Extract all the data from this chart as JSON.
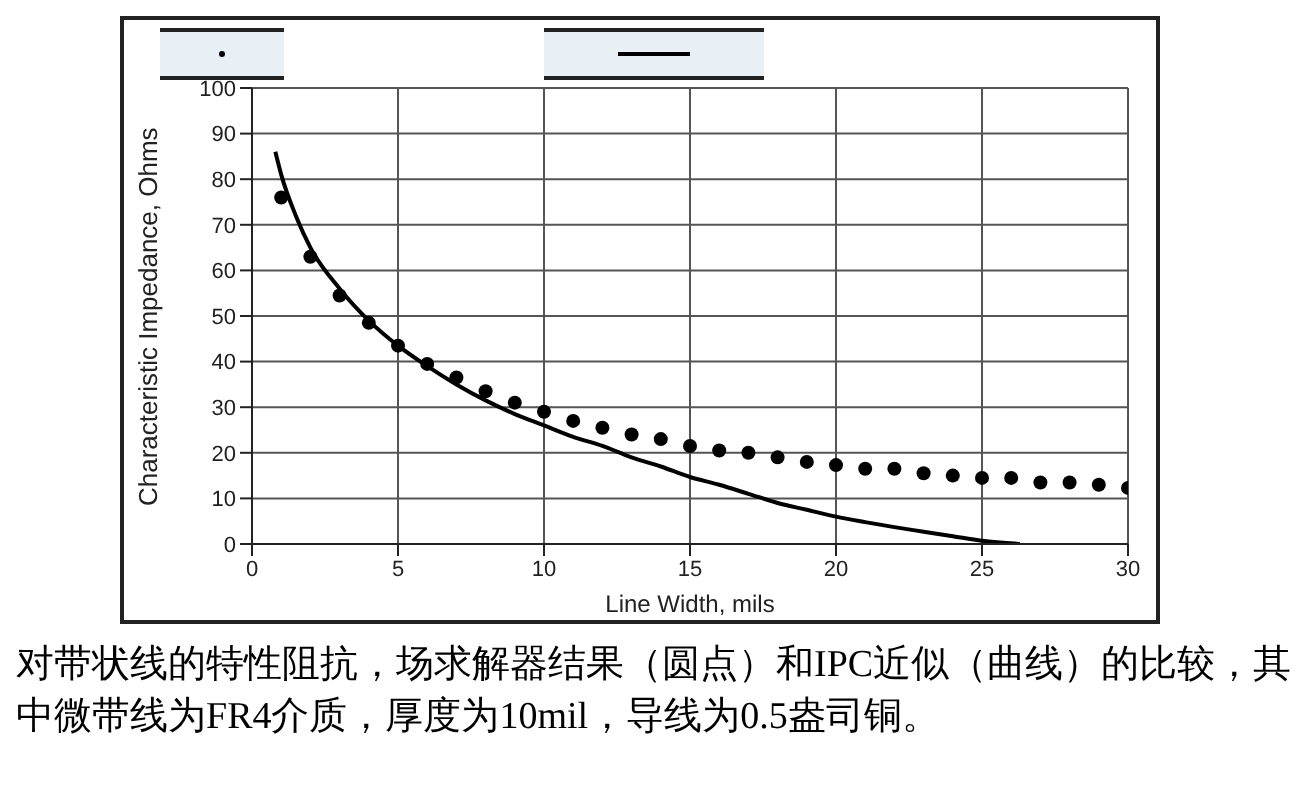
{
  "chart_data": {
    "type": "scatter",
    "xlabel": "Line Width, mils",
    "ylabel": "Characteristic Impedance, Ohms",
    "xlim": [
      0,
      30
    ],
    "xticks": [
      0,
      5,
      10,
      15,
      20,
      25,
      30
    ],
    "ylim": [
      0,
      100
    ],
    "yticks": [
      0,
      10,
      20,
      30,
      40,
      50,
      60,
      70,
      80,
      90,
      100
    ],
    "grid": true,
    "series": [
      {
        "type": "scatter",
        "color": "#000000",
        "marker": "circle",
        "x": [
          1,
          2,
          3,
          4,
          5,
          6,
          7,
          8,
          9,
          10,
          11,
          12,
          13,
          14,
          15,
          16,
          17,
          18,
          19,
          20,
          21,
          22,
          23,
          24,
          25,
          26,
          27,
          28,
          29,
          30
        ],
        "values": [
          76,
          63,
          54.5,
          48.5,
          43.5,
          39.5,
          36.5,
          33.5,
          31,
          29,
          27,
          25.5,
          24,
          23,
          21.5,
          20.5,
          20,
          19,
          18,
          17.3,
          16.5,
          16.5,
          15.5,
          15,
          14.5,
          14.5,
          13.5,
          13.5,
          13,
          12.3
        ]
      },
      {
        "type": "line",
        "color": "#000000",
        "marker": "none",
        "line_style": "solid",
        "x": [
          0.8,
          1,
          1.5,
          2,
          3,
          4,
          5,
          6,
          7,
          8,
          9,
          10,
          11,
          12,
          13,
          14,
          15,
          16,
          17,
          18,
          19,
          20,
          21,
          22,
          23,
          24,
          25,
          26.3
        ],
        "values": [
          86,
          81,
          72,
          65,
          56,
          49,
          43.5,
          39,
          35,
          31.5,
          28.5,
          26,
          23.5,
          21.5,
          19,
          17,
          14.7,
          13,
          11,
          9,
          7.5,
          6,
          4.8,
          3.7,
          2.7,
          1.7,
          0.7,
          0
        ]
      }
    ],
    "annotations": [
      "对带状线的特性阻抗，场求解器结果（圆点）和IPC近似（曲线）的比较，其中微带线为FR4介质，厚度为10mil，导线为0.5盎司铜。"
    ]
  }
}
